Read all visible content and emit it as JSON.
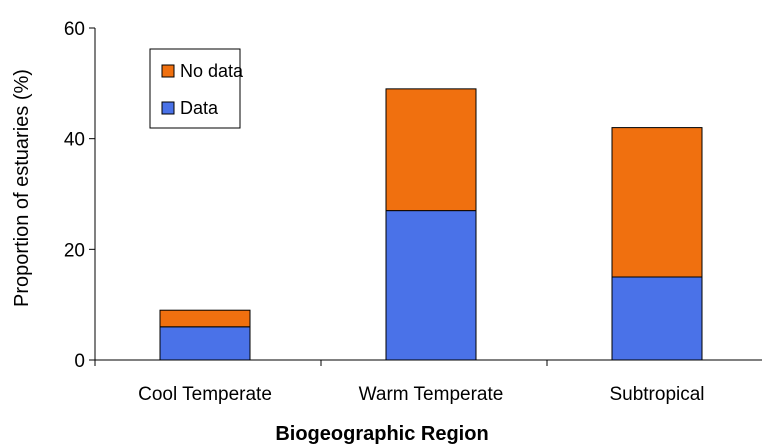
{
  "chart_data": {
    "type": "bar",
    "stacked": true,
    "categories": [
      "Cool Temperate",
      "Warm Temperate",
      "Subtropical"
    ],
    "series": [
      {
        "name": "Data",
        "values": [
          6,
          27,
          15
        ],
        "color": "#4a72e8"
      },
      {
        "name": "No data",
        "values": [
          3,
          22,
          27
        ],
        "color": "#f0700f"
      }
    ],
    "xlabel": "Biogeographic Region",
    "ylabel": "Proportion of estuaries (%)",
    "ylim": [
      0,
      60
    ],
    "yticks": [
      0,
      20,
      40,
      60
    ],
    "grid": false,
    "legend": {
      "position": "top-left",
      "entries": [
        "No data",
        "Data"
      ]
    }
  }
}
